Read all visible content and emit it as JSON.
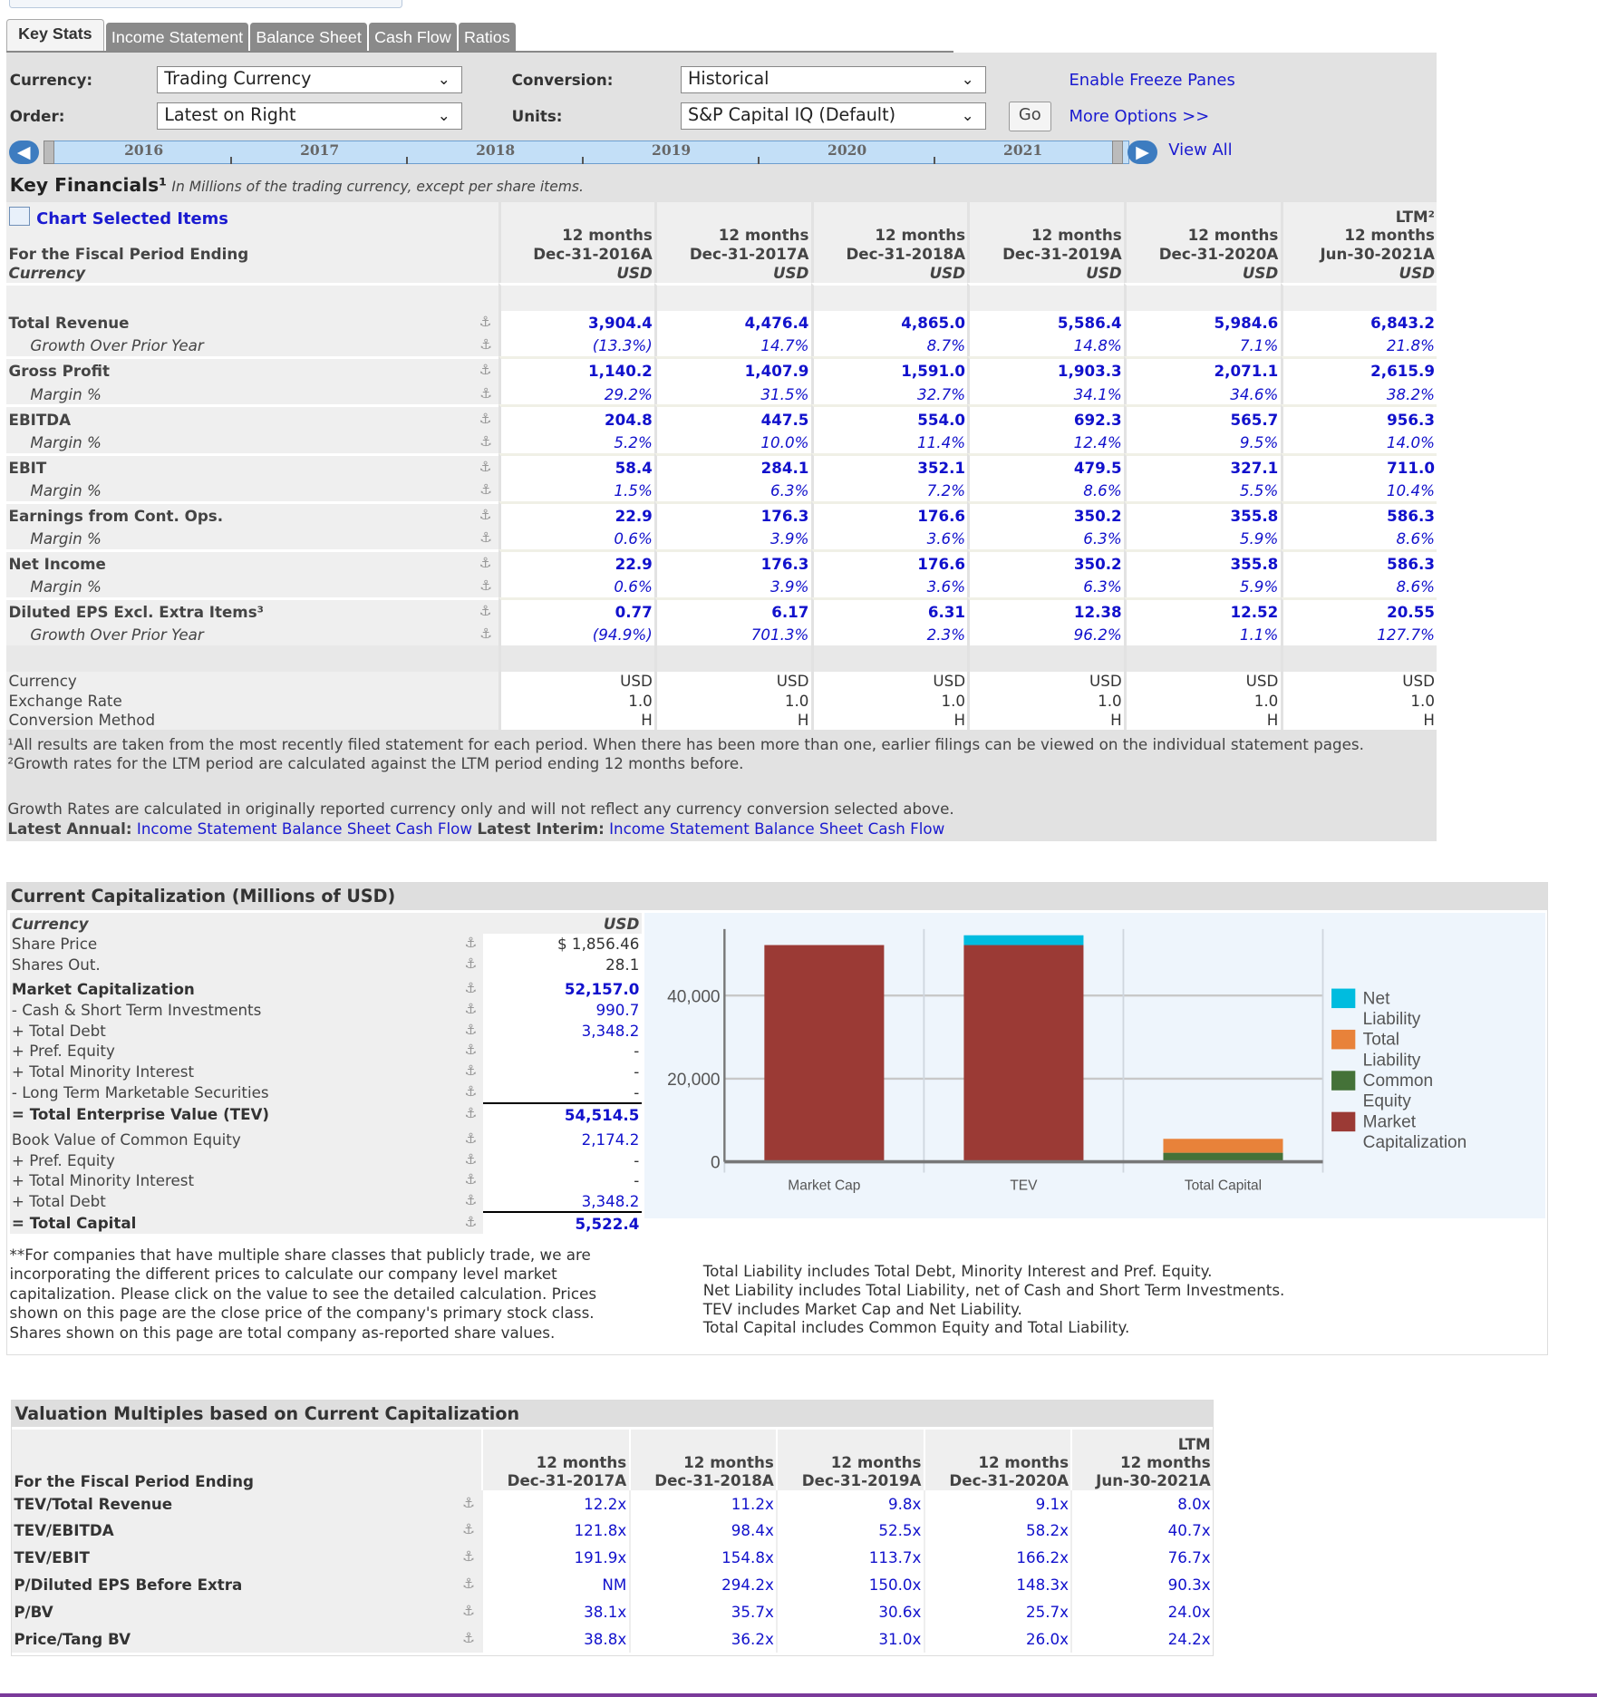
{
  "tabs": [
    "Key Stats",
    "Income Statement",
    "Balance Sheet",
    "Cash Flow",
    "Ratios"
  ],
  "controls": {
    "currency_label": "Currency:",
    "currency_value": "Trading Currency",
    "order_label": "Order:",
    "order_value": "Latest on Right",
    "conversion_label": "Conversion:",
    "conversion_value": "Historical",
    "units_label": "Units:",
    "units_value": "S&P Capital IQ (Default)",
    "go": "Go",
    "freeze": "Enable Freeze Panes",
    "more": "More Options >>",
    "view_all": "View All"
  },
  "slider_years": [
    "2016",
    "2017",
    "2018",
    "2019",
    "2020",
    "2021"
  ],
  "key_financials": {
    "title": "Key Financials¹",
    "subtitle": "In Millions of the trading currency, except per share items.",
    "chart_link": "Chart Selected Items",
    "period_label": "For the Fiscal Period Ending",
    "currency_label": "Currency",
    "columns": [
      {
        "top": "",
        "months": "12 months",
        "date": "Dec-31-2016A",
        "cur": "USD"
      },
      {
        "top": "",
        "months": "12 months",
        "date": "Dec-31-2017A",
        "cur": "USD"
      },
      {
        "top": "",
        "months": "12 months",
        "date": "Dec-31-2018A",
        "cur": "USD"
      },
      {
        "top": "",
        "months": "12 months",
        "date": "Dec-31-2019A",
        "cur": "USD"
      },
      {
        "top": "",
        "months": "12 months",
        "date": "Dec-31-2020A",
        "cur": "USD"
      },
      {
        "top": "LTM²",
        "months": "12 months",
        "date": "Jun-30-2021A",
        "cur": "USD"
      }
    ],
    "rows": [
      {
        "label": "Total Revenue",
        "type": "main",
        "values": [
          "3,904.4",
          "4,476.4",
          "4,865.0",
          "5,586.4",
          "5,984.6",
          "6,843.2"
        ]
      },
      {
        "label": "Growth Over Prior Year",
        "type": "sub",
        "values": [
          "(13.3%)",
          "14.7%",
          "8.7%",
          "14.8%",
          "7.1%",
          "21.8%"
        ]
      },
      {
        "label": "Gross Profit",
        "type": "main",
        "values": [
          "1,140.2",
          "1,407.9",
          "1,591.0",
          "1,903.3",
          "2,071.1",
          "2,615.9"
        ]
      },
      {
        "label": "Margin %",
        "type": "sub",
        "values": [
          "29.2%",
          "31.5%",
          "32.7%",
          "34.1%",
          "34.6%",
          "38.2%"
        ]
      },
      {
        "label": "EBITDA",
        "type": "main",
        "values": [
          "204.8",
          "447.5",
          "554.0",
          "692.3",
          "565.7",
          "956.3"
        ]
      },
      {
        "label": "Margin %",
        "type": "sub",
        "values": [
          "5.2%",
          "10.0%",
          "11.4%",
          "12.4%",
          "9.5%",
          "14.0%"
        ]
      },
      {
        "label": "EBIT",
        "type": "main",
        "values": [
          "58.4",
          "284.1",
          "352.1",
          "479.5",
          "327.1",
          "711.0"
        ]
      },
      {
        "label": "Margin %",
        "type": "sub",
        "values": [
          "1.5%",
          "6.3%",
          "7.2%",
          "8.6%",
          "5.5%",
          "10.4%"
        ]
      },
      {
        "label": "Earnings from Cont. Ops.",
        "type": "main",
        "values": [
          "22.9",
          "176.3",
          "176.6",
          "350.2",
          "355.8",
          "586.3"
        ]
      },
      {
        "label": "Margin %",
        "type": "sub",
        "values": [
          "0.6%",
          "3.9%",
          "3.6%",
          "6.3%",
          "5.9%",
          "8.6%"
        ]
      },
      {
        "label": "Net Income",
        "type": "main",
        "values": [
          "22.9",
          "176.3",
          "176.6",
          "350.2",
          "355.8",
          "586.3"
        ]
      },
      {
        "label": "Margin %",
        "type": "sub",
        "values": [
          "0.6%",
          "3.9%",
          "3.6%",
          "6.3%",
          "5.9%",
          "8.6%"
        ]
      },
      {
        "label": "Diluted EPS Excl. Extra Items³",
        "type": "main",
        "values": [
          "0.77",
          "6.17",
          "6.31",
          "12.38",
          "12.52",
          "20.55"
        ]
      },
      {
        "label": "Growth Over Prior Year",
        "type": "sub",
        "values": [
          "(94.9%)",
          "701.3%",
          "2.3%",
          "96.2%",
          "1.1%",
          "127.7%"
        ]
      }
    ],
    "footer_rows": [
      {
        "label": "Currency",
        "values": [
          "USD",
          "USD",
          "USD",
          "USD",
          "USD",
          "USD"
        ]
      },
      {
        "label": "Exchange Rate",
        "values": [
          "1.0",
          "1.0",
          "1.0",
          "1.0",
          "1.0",
          "1.0"
        ]
      },
      {
        "label": "Conversion Method",
        "values": [
          "H",
          "H",
          "H",
          "H",
          "H",
          "H"
        ]
      }
    ],
    "note1": "¹All results are taken from the most recently filed statement for each period. When there has been more than one, earlier filings can be viewed on the individual statement pages.",
    "note2": "²Growth rates for the LTM period are calculated against the LTM period ending 12 months before.",
    "note3": "Growth Rates are calculated in originally reported currency only and will not reflect any currency conversion selected above.",
    "latest_annual": "Latest Annual:",
    "latest_interim": "Latest Interim:",
    "links": [
      "Income Statement",
      "Balance Sheet",
      "Cash Flow"
    ]
  },
  "capitalization": {
    "title": "Current Capitalization (Millions of USD)",
    "currency_label": "Currency",
    "currency": "USD",
    "rows": [
      {
        "label": "Share Price",
        "value": "$ 1,856.46",
        "style": "plain"
      },
      {
        "label": "Shares Out.",
        "value": "28.1",
        "style": "plain"
      },
      {
        "label": "Market Capitalization",
        "value": "52,157.0",
        "style": "bold"
      },
      {
        "label": "- Cash & Short Term Investments",
        "value": "990.7",
        "style": "link"
      },
      {
        "label": "+ Total Debt",
        "value": "3,348.2",
        "style": "link"
      },
      {
        "label": "+ Pref. Equity",
        "value": "-",
        "style": "plain"
      },
      {
        "label": "+ Total Minority Interest",
        "value": "-",
        "style": "plain"
      },
      {
        "label": "- Long Term Marketable Securities",
        "value": "-",
        "style": "plain"
      },
      {
        "label": "= Total Enterprise Value (TEV)",
        "value": "54,514.5",
        "style": "total"
      },
      {
        "label": "Book Value of Common Equity",
        "value": "2,174.2",
        "style": "link"
      },
      {
        "label": "+ Pref. Equity",
        "value": "-",
        "style": "plain"
      },
      {
        "label": "+ Total Minority Interest",
        "value": "-",
        "style": "plain"
      },
      {
        "label": "+ Total Debt",
        "value": "3,348.2",
        "style": "link"
      },
      {
        "label": "= Total Capital",
        "value": "5,522.4",
        "style": "total"
      }
    ],
    "note_left": "**For companies that have multiple share classes that publicly trade, we are incorporating the different prices to calculate our company level market capitalization. Please click on the value to see the detailed calculation. Prices shown on this page are the close price of the company's primary stock class. Shares shown on this page are total company as-reported share values.",
    "note_right": [
      "Total Liability includes Total Debt, Minority Interest and Pref. Equity.",
      "Net Liability includes Total Liability, net of Cash and Short Term Investments.",
      "TEV includes Market Cap and Net Liability.",
      "Total Capital includes Common Equity and Total Liability."
    ]
  },
  "chart_data": {
    "type": "bar",
    "stacked": true,
    "categories": [
      "Market Cap",
      "TEV",
      "Total Capital"
    ],
    "series": [
      {
        "name": "Market Capitalization",
        "color": "#9b3a35",
        "values": [
          52157.0,
          52157.0,
          0
        ]
      },
      {
        "name": "Net Liability",
        "color": "#00bcdf",
        "values": [
          0,
          2357.5,
          0
        ]
      },
      {
        "name": "Common Equity",
        "color": "#447238",
        "values": [
          0,
          0,
          2174.2
        ]
      },
      {
        "name": "Total Liability",
        "color": "#e8823a",
        "values": [
          0,
          0,
          3348.2
        ]
      }
    ],
    "legend_order": [
      "Net Liability",
      "Total Liability",
      "Common Equity",
      "Market Capitalization"
    ],
    "yticks": [
      "0",
      "20,000",
      "40,000"
    ],
    "ytick_values": [
      0,
      20000,
      40000
    ],
    "ylim": [
      0,
      56000
    ],
    "grid": true,
    "legend": "right"
  },
  "valuation": {
    "title": "Valuation Multiples based on Current Capitalization",
    "period_label": "For the Fiscal Period Ending",
    "columns": [
      {
        "top": "",
        "months": "12 months",
        "date": "Dec-31-2017A"
      },
      {
        "top": "",
        "months": "12 months",
        "date": "Dec-31-2018A"
      },
      {
        "top": "",
        "months": "12 months",
        "date": "Dec-31-2019A"
      },
      {
        "top": "",
        "months": "12 months",
        "date": "Dec-31-2020A"
      },
      {
        "top": "LTM",
        "months": "12 months",
        "date": "Jun-30-2021A"
      }
    ],
    "rows": [
      {
        "label": "TEV/Total Revenue",
        "values": [
          "12.2x",
          "11.2x",
          "9.8x",
          "9.1x",
          "8.0x"
        ]
      },
      {
        "label": "TEV/EBITDA",
        "values": [
          "121.8x",
          "98.4x",
          "52.5x",
          "58.2x",
          "40.7x"
        ]
      },
      {
        "label": "TEV/EBIT",
        "values": [
          "191.9x",
          "154.8x",
          "113.7x",
          "166.2x",
          "76.7x"
        ]
      },
      {
        "label": "P/Diluted EPS Before Extra",
        "values": [
          "NM",
          "294.2x",
          "150.0x",
          "148.3x",
          "90.3x"
        ]
      },
      {
        "label": "P/BV",
        "values": [
          "38.1x",
          "35.7x",
          "30.6x",
          "25.7x",
          "24.0x"
        ]
      },
      {
        "label": "Price/Tang BV",
        "values": [
          "38.8x",
          "36.2x",
          "31.0x",
          "26.0x",
          "24.2x"
        ]
      }
    ]
  }
}
